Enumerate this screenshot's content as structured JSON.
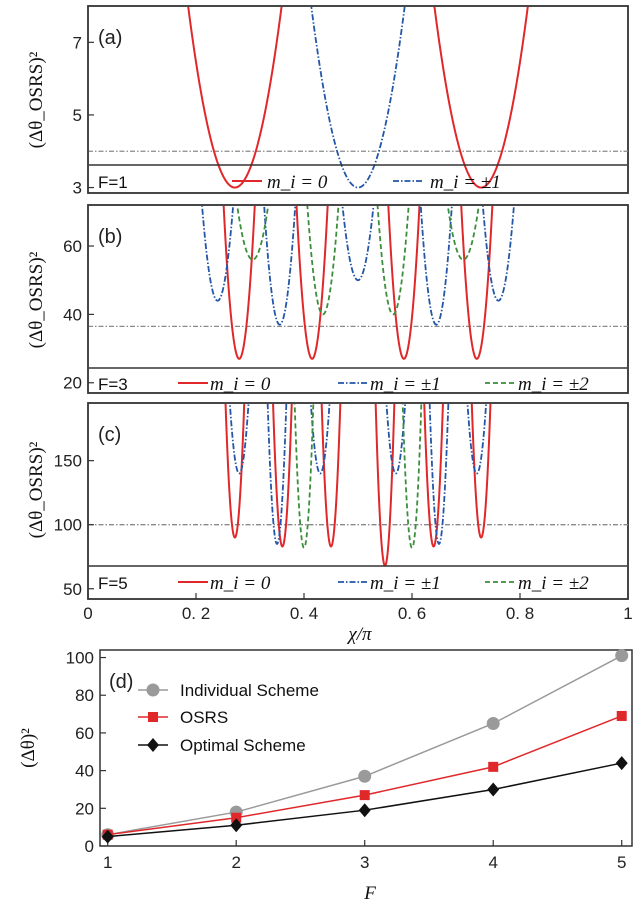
{
  "chart_data": [
    {
      "type": "line",
      "panel_label": "(a)",
      "ylabel": "(Δθ_OSRS)²",
      "ylim": [
        2.85,
        8.0
      ],
      "yticks": [
        "3",
        "5",
        "7"
      ],
      "xlim": [
        0,
        1
      ],
      "threshold": 4.0,
      "legend_title": "F=1",
      "legend": [
        "m_i = 0",
        "m_i = ±1"
      ],
      "series": [
        {
          "name": "m_i = 0",
          "color": "#e0282b",
          "dash": "solid",
          "minima": [
            {
              "x": 0.272,
              "y": 3.0
            },
            {
              "x": 0.728,
              "y": 3.0
            }
          ]
        },
        {
          "name": "m_i = ±1",
          "color": "#2356a8",
          "dash": "dashdot",
          "minima": [
            {
              "x": 0.5,
              "y": 3.0
            }
          ]
        }
      ]
    },
    {
      "type": "line",
      "panel_label": "(b)",
      "ylabel": "(Δθ_OSRS)²",
      "ylim": [
        17,
        72
      ],
      "yticks": [
        "20",
        "40",
        "60"
      ],
      "xlim": [
        0,
        1
      ],
      "threshold": 36.5,
      "legend_title": "F=3",
      "legend": [
        "m_i = 0",
        "m_i = ±1",
        "m_i = ±2"
      ],
      "series": [
        {
          "name": "m_i = 0",
          "color": "#e0282b",
          "dash": "solid",
          "minima": [
            {
              "x": 0.28,
              "y": 27
            },
            {
              "x": 0.415,
              "y": 27
            },
            {
              "x": 0.585,
              "y": 27
            },
            {
              "x": 0.72,
              "y": 27
            }
          ]
        },
        {
          "name": "m_i = ±1",
          "color": "#2356a8",
          "dash": "dashdot",
          "minima": [
            {
              "x": 0.24,
              "y": 44
            },
            {
              "x": 0.355,
              "y": 37
            },
            {
              "x": 0.5,
              "y": 50
            },
            {
              "x": 0.645,
              "y": 37
            },
            {
              "x": 0.76,
              "y": 44
            }
          ]
        },
        {
          "name": "m_i = ±2",
          "color": "#3a8f3a",
          "dash": "dashed",
          "minima": [
            {
              "x": 0.305,
              "y": 56
            },
            {
              "x": 0.435,
              "y": 40
            },
            {
              "x": 0.565,
              "y": 40
            },
            {
              "x": 0.695,
              "y": 56
            }
          ]
        }
      ]
    },
    {
      "type": "line",
      "panel_label": "(c)",
      "ylabel": "(Δθ_OSRS)²",
      "ylim": [
        42,
        195
      ],
      "yticks": [
        "50",
        "100",
        "150"
      ],
      "xlim": [
        0,
        1
      ],
      "xticks": [
        "0",
        "0. 2",
        "0. 4",
        "0. 6",
        "0. 8",
        "1"
      ],
      "xlabel": "χ/π",
      "threshold": 100,
      "legend_title": "F=5",
      "legend": [
        "m_i = 0",
        "m_i = ±1",
        "m_i = ±2"
      ],
      "series": [
        {
          "name": "m_i = 0",
          "color": "#e0282b",
          "dash": "solid",
          "minima": [
            {
              "x": 0.272,
              "y": 90
            },
            {
              "x": 0.36,
              "y": 83
            },
            {
              "x": 0.45,
              "y": 83
            },
            {
              "x": 0.55,
              "y": 68
            },
            {
              "x": 0.64,
              "y": 83
            },
            {
              "x": 0.728,
              "y": 90
            }
          ]
        },
        {
          "name": "m_i = ±1",
          "color": "#2356a8",
          "dash": "dashdot",
          "minima": [
            {
              "x": 0.28,
              "y": 140
            },
            {
              "x": 0.35,
              "y": 85
            },
            {
              "x": 0.43,
              "y": 140
            },
            {
              "x": 0.57,
              "y": 140
            },
            {
              "x": 0.65,
              "y": 85
            },
            {
              "x": 0.72,
              "y": 140
            }
          ]
        },
        {
          "name": "m_i = ±2",
          "color": "#3a8f3a",
          "dash": "dashed",
          "minima": [
            {
              "x": 0.4,
              "y": 82
            },
            {
              "x": 0.6,
              "y": 82
            }
          ]
        }
      ]
    },
    {
      "type": "line",
      "panel_label": "(d)",
      "xlabel": "F",
      "ylabel": "(Δθ)²",
      "x": [
        1,
        2,
        3,
        4,
        5
      ],
      "xlim": [
        0.94,
        5.08
      ],
      "ylim": [
        0,
        104
      ],
      "yticks": [
        "0",
        "20",
        "40",
        "60",
        "80",
        "100"
      ],
      "xticks": [
        "1",
        "2",
        "3",
        "4",
        "5"
      ],
      "series": [
        {
          "name": "Individual Scheme",
          "color": "#9a9a9a",
          "marker": "circle",
          "values": [
            6,
            18,
            37,
            65,
            101
          ]
        },
        {
          "name": "OSRS",
          "color": "#e0282b",
          "marker": "square",
          "values": [
            6,
            15,
            27,
            42,
            69
          ]
        },
        {
          "name": "Optimal Scheme",
          "color": "#111111",
          "marker": "diamond",
          "values": [
            5,
            11,
            19,
            30,
            44
          ]
        }
      ]
    }
  ]
}
